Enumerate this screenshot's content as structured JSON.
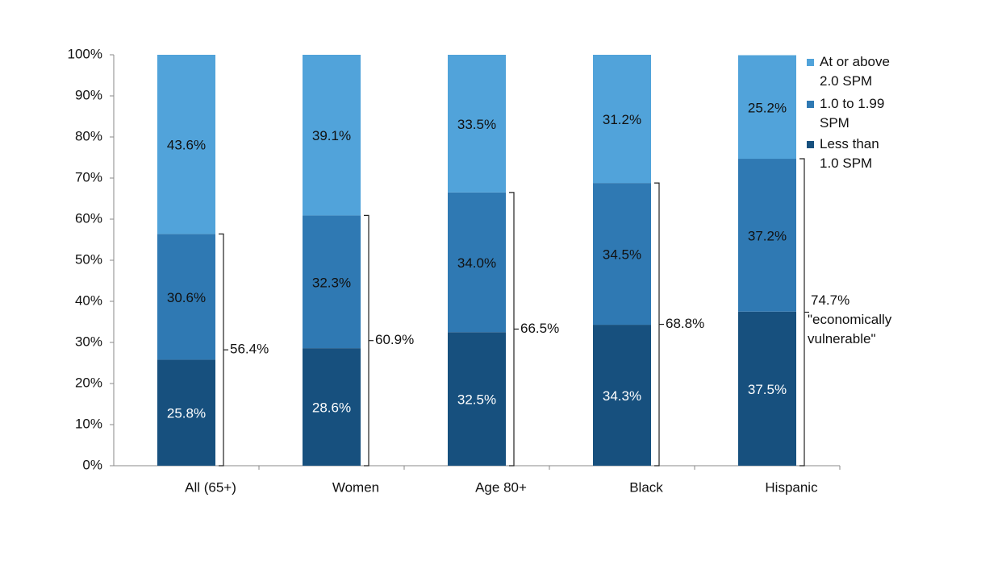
{
  "chart_data": {
    "type": "stacked-bar",
    "categories": [
      "All (65+)",
      "Women",
      "Age 80+",
      "Black",
      "Hispanic"
    ],
    "series": [
      {
        "name": "Less than 1.0 SPM",
        "color": "#17507e",
        "values": [
          25.8,
          28.6,
          32.5,
          34.3,
          37.5
        ],
        "value_labels": [
          "25.8%",
          "28.6%",
          "32.5%",
          "34.3%",
          "37.5%"
        ]
      },
      {
        "name": "1.0 to 1.99 SPM",
        "color": "#2f79b3",
        "values": [
          30.6,
          32.3,
          34.0,
          34.5,
          37.2
        ],
        "value_labels": [
          "30.6%",
          "32.3%",
          "34.0%",
          "34.5%",
          "37.2%"
        ]
      },
      {
        "name": "At or above 2.0 SPM",
        "color": "#51a3da",
        "values": [
          43.6,
          39.1,
          33.5,
          31.2,
          25.2
        ],
        "value_labels": [
          "43.6%",
          "39.1%",
          "33.5%",
          "31.2%",
          "25.2%"
        ]
      }
    ],
    "annotations": [
      {
        "value": 56.4,
        "label": "56.4%"
      },
      {
        "value": 60.9,
        "label": "60.9%"
      },
      {
        "value": 66.5,
        "label": "66.5%"
      },
      {
        "value": 68.8,
        "label": "68.8%"
      },
      {
        "value": 74.7,
        "label": "74.7%",
        "note": [
          "\"economically",
          "vulnerable\""
        ]
      }
    ],
    "ylim": [
      0,
      100
    ],
    "yticks": [
      {
        "value": 0,
        "label": "0%"
      },
      {
        "value": 10,
        "label": "10%"
      },
      {
        "value": 20,
        "label": "20%"
      },
      {
        "value": 30,
        "label": "30%"
      },
      {
        "value": 40,
        "label": "40%"
      },
      {
        "value": 50,
        "label": "50%"
      },
      {
        "value": 60,
        "label": "60%"
      },
      {
        "value": 70,
        "label": "70%"
      },
      {
        "value": 80,
        "label": "80%"
      },
      {
        "value": 90,
        "label": "90%"
      },
      {
        "value": 100,
        "label": "100%"
      }
    ],
    "legend": "top-right"
  }
}
